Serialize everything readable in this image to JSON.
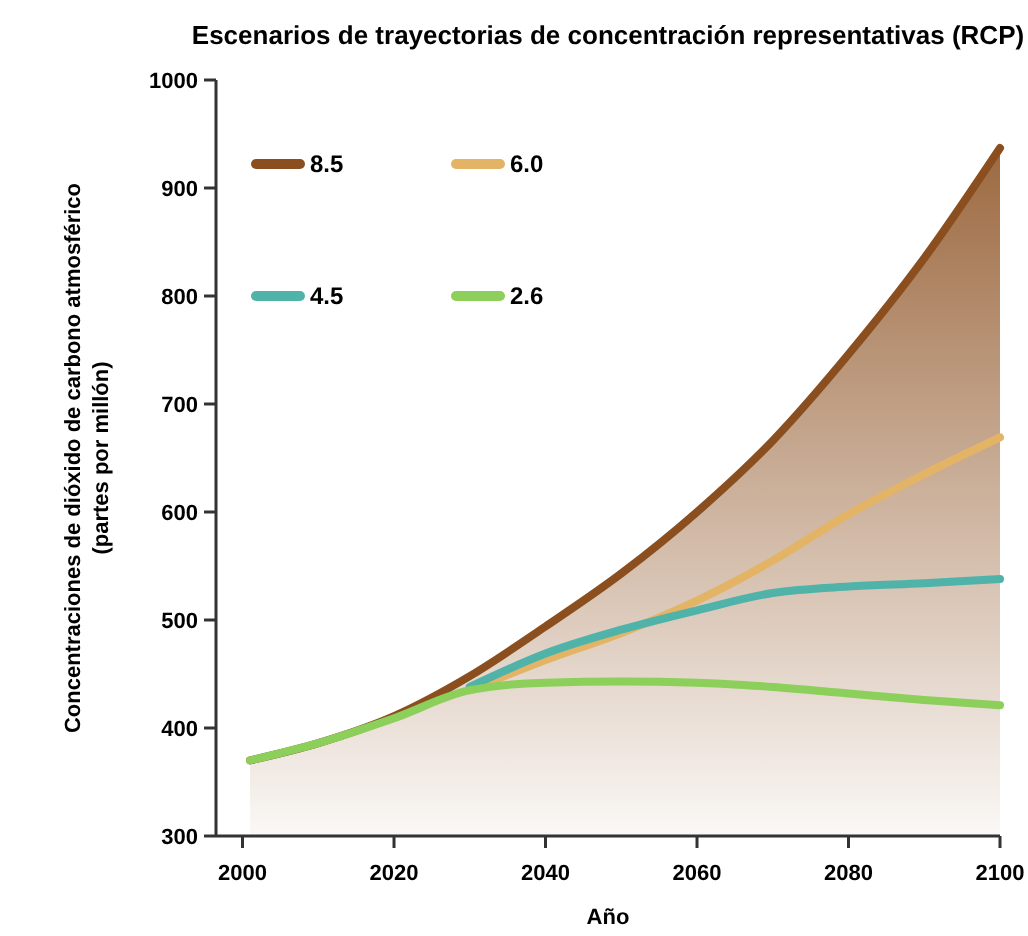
{
  "chart_data": {
    "type": "line",
    "title": "Escenarios de trayectorias de concentración representativas (RCP)",
    "xlabel": "Año",
    "ylabel": "Concentraciones de dióxido de carbono atmosférico (partes por millón)",
    "x": [
      2001,
      2010,
      2020,
      2030,
      2040,
      2050,
      2060,
      2070,
      2080,
      2090,
      2100
    ],
    "series": [
      {
        "name": "8.5",
        "type": "area",
        "color": "#8b4f1f",
        "values": [
          370,
          386,
          411,
          448,
          494,
          543,
          600,
          666,
          746,
          835,
          937
        ]
      },
      {
        "name": "6.0",
        "color": "#e3b466",
        "values": [
          null,
          null,
          null,
          435,
          463,
          488,
          518,
          555,
          598,
          635,
          669
        ]
      },
      {
        "name": "4.5",
        "color": "#4fb3aa",
        "values": [
          null,
          null,
          null,
          438,
          469,
          491,
          509,
          525,
          531,
          534,
          538
        ]
      },
      {
        "name": "2.6",
        "color": "#8ccf5a",
        "values": [
          370,
          386,
          409,
          435,
          442,
          443,
          442,
          438,
          432,
          426,
          421
        ]
      }
    ],
    "xlim": [
      1996.5,
      2100
    ],
    "xticks": [
      2000,
      2020,
      2040,
      2060,
      2080,
      2100
    ],
    "ylim": [
      300,
      1000
    ],
    "yticks": [
      300,
      400,
      500,
      600,
      700,
      800,
      900,
      1000
    ],
    "legend": "top left",
    "grid": false
  }
}
